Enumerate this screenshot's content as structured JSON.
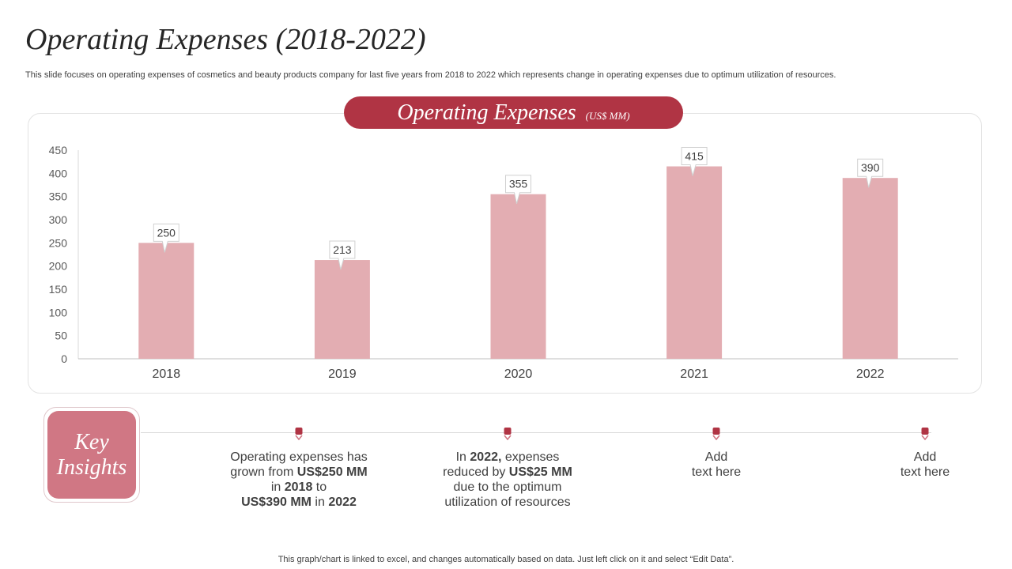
{
  "page": {
    "title": "Operating Expenses (2018-2022)",
    "subtitle": "This slide focuses on operating expenses of cosmetics and beauty products company for last five years from 2018 to 2022 which represents change in operating expenses due to optimum utilization of resources.",
    "footer": "This graph/chart is linked to excel,  and changes automatically based on data. Just left click on it and select “Edit Data”."
  },
  "colors": {
    "accent": "#b03444",
    "bar": "#e3adb2",
    "key_box": "#d07784"
  },
  "chart_data": {
    "type": "bar",
    "title": "Operating Expenses",
    "unit_label": "(US$ MM)",
    "categories": [
      "2018",
      "2019",
      "2020",
      "2021",
      "2022"
    ],
    "values": [
      250,
      213,
      355,
      415,
      390
    ],
    "xlabel": "",
    "ylabel": "",
    "ylim": [
      0,
      450
    ],
    "yticks": [
      0,
      50,
      100,
      150,
      200,
      250,
      300,
      350,
      400,
      450
    ],
    "grid": false,
    "legend": "none"
  },
  "insights": {
    "heading_line1": "Key",
    "heading_line2": "Insights",
    "items": [
      {
        "l1a": "Operating expenses has",
        "l2a": "grown from ",
        "l2b": "US$250 MM",
        "l3a": "in ",
        "l3b": "2018",
        "l3c": " to",
        "l4a": "US$390 MM",
        "l4b": " in ",
        "l4c": "2022"
      },
      {
        "l1a": "In ",
        "l1b": "2022,",
        "l1c": " expenses",
        "l2a": "reduced by ",
        "l2b": "US$25 MM",
        "l3a": "due to the optimum",
        "l4a": "utilization  of resources"
      },
      {
        "l1a": "Add",
        "l2a": "text here"
      },
      {
        "l1a": "Add",
        "l2a": "text here"
      }
    ]
  }
}
